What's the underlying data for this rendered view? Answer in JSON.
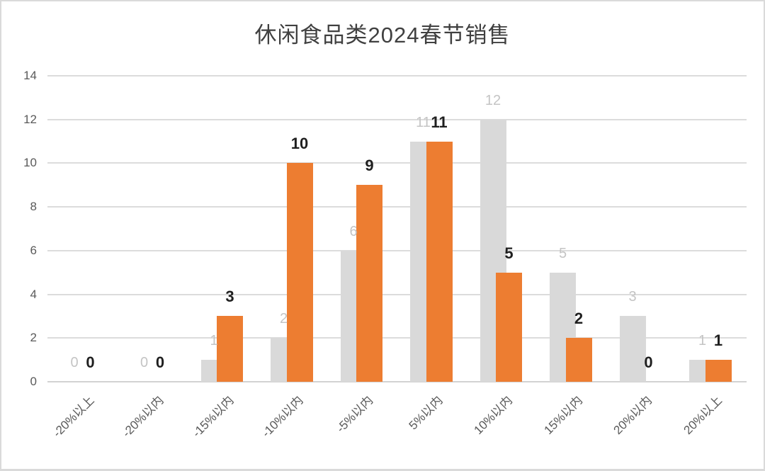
{
  "chart_data": {
    "type": "bar",
    "title": "休闲食品类2024春节销售",
    "categories": [
      "-20%以上",
      "-20%以内",
      "-15%以内",
      "-10%以内",
      "-5%以内",
      "5%以内",
      "10%以内",
      "15%以内",
      "20%以内",
      "20%以上"
    ],
    "series": [
      {
        "name": "gray",
        "color": "#D9D9D9",
        "label_color": "#C4C4C4",
        "label_bold": false,
        "values": [
          0,
          0,
          1,
          2,
          6,
          11,
          12,
          5,
          3,
          1
        ]
      },
      {
        "name": "orange",
        "color": "#ED7D31",
        "label_color": "#1F1F1F",
        "label_bold": true,
        "values": [
          0,
          0,
          3,
          10,
          9,
          11,
          5,
          2,
          0,
          1
        ]
      }
    ],
    "xlabel": "",
    "ylabel": "",
    "ylim": [
      0,
      14
    ],
    "yticks": [
      0,
      2,
      4,
      6,
      8,
      10,
      12,
      14
    ],
    "grid": true,
    "legend_position": "none",
    "colors": {
      "grid_line": "#DCDCDC",
      "axis_text": "#595959",
      "title_text": "#404040",
      "background": "#FFFFFF",
      "border": "#DADADA"
    }
  }
}
